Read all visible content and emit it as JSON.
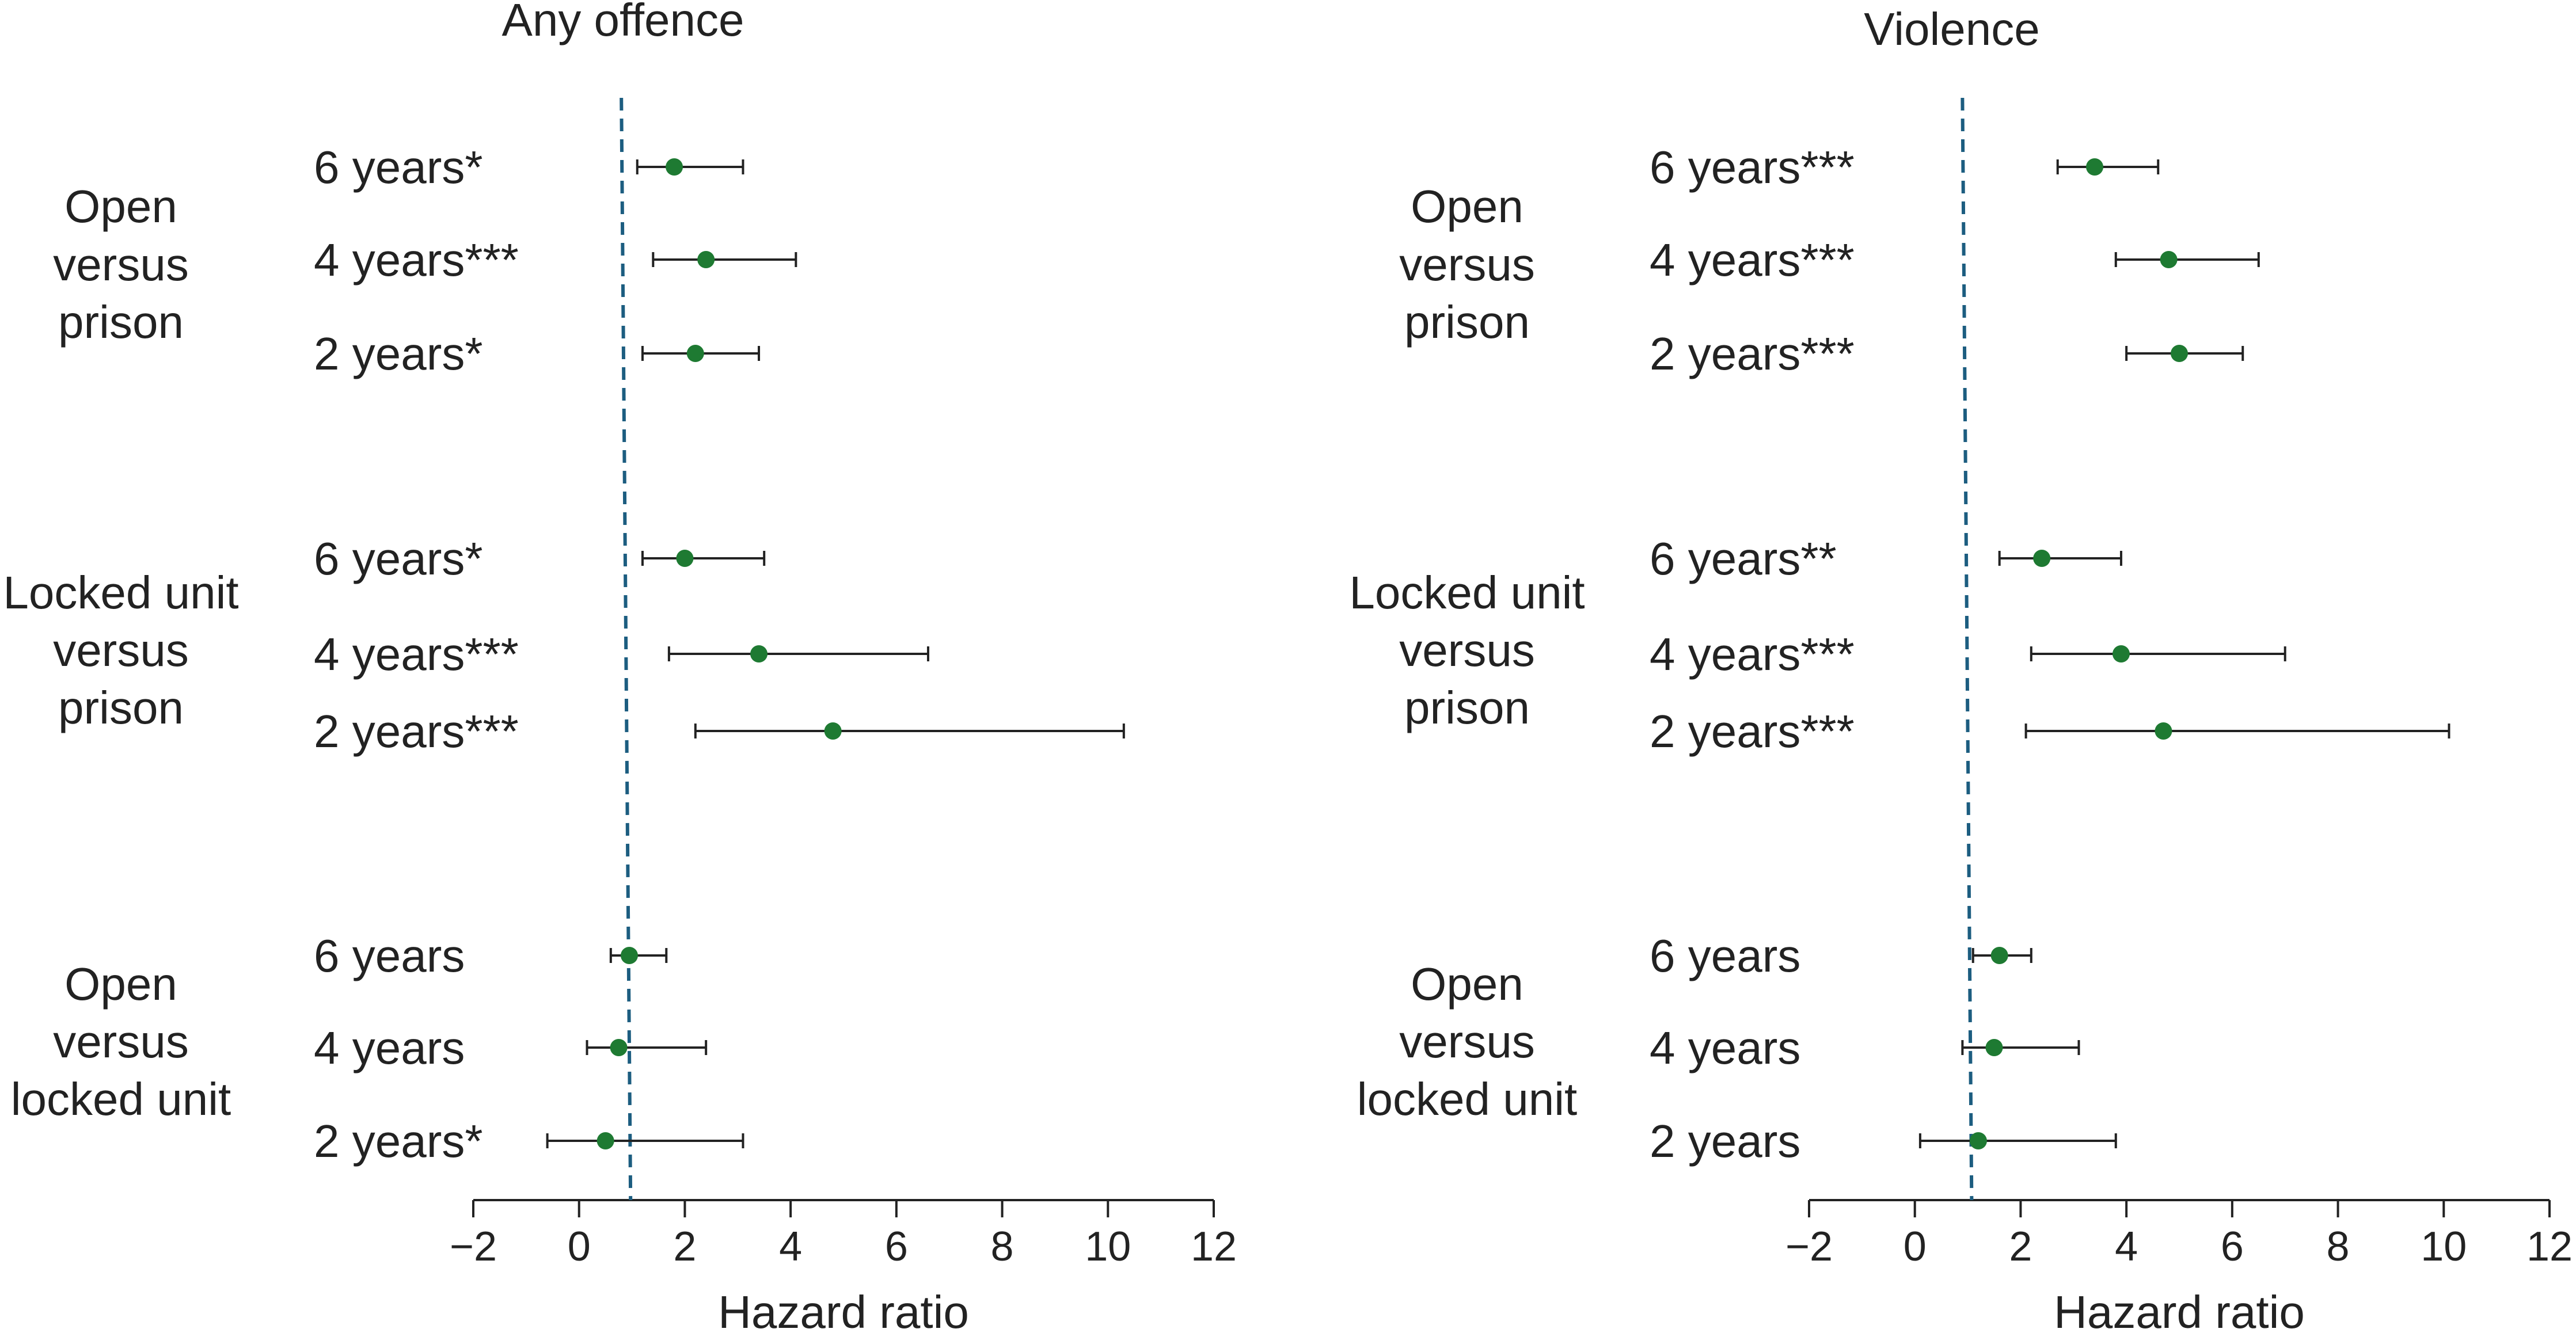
{
  "chart_data": [
    {
      "type": "forest",
      "title": "Any offence",
      "xlabel": "Hazard ratio",
      "xlim": [
        -2,
        12
      ],
      "xticks": [
        "−2",
        "0",
        "2",
        "4",
        "6",
        "8",
        "10",
        "12"
      ],
      "xtick_values": [
        -2,
        0,
        2,
        4,
        6,
        8,
        10,
        12
      ],
      "reference_line": 0.8,
      "point_color": "#1e7a32",
      "reference_color": "#1c5d80",
      "groups": [
        {
          "label": [
            "Open",
            "versus",
            "prison"
          ],
          "rows": [
            {
              "label": "6 years*",
              "estimate": 1.8,
              "lower": 1.1,
              "upper": 3.1
            },
            {
              "label": "4 years***",
              "estimate": 2.4,
              "lower": 1.4,
              "upper": 4.1
            },
            {
              "label": "2 years*",
              "estimate": 2.2,
              "lower": 1.2,
              "upper": 3.4
            }
          ]
        },
        {
          "label": [
            "Locked unit",
            "versus",
            "prison"
          ],
          "rows": [
            {
              "label": "6 years*",
              "estimate": 2.0,
              "lower": 1.2,
              "upper": 3.5
            },
            {
              "label": "4 years***",
              "estimate": 3.4,
              "lower": 1.7,
              "upper": 6.6
            },
            {
              "label": "2 years***",
              "estimate": 4.8,
              "lower": 2.2,
              "upper": 10.3
            }
          ]
        },
        {
          "label": [
            "Open",
            "versus",
            "locked unit"
          ],
          "rows": [
            {
              "label": "6 years",
              "estimate": 0.95,
              "lower": 0.6,
              "upper": 1.65
            },
            {
              "label": "4 years",
              "estimate": 0.75,
              "lower": 0.15,
              "upper": 2.4
            },
            {
              "label": "2 years*",
              "estimate": 0.5,
              "lower": -0.6,
              "upper": 3.1
            }
          ]
        }
      ]
    },
    {
      "type": "forest",
      "title": "Violence",
      "xlabel": "Hazard ratio",
      "xlim": [
        -2,
        12
      ],
      "xticks": [
        "−2",
        "0",
        "2",
        "4",
        "6",
        "8",
        "10",
        "12"
      ],
      "xtick_values": [
        -2,
        0,
        2,
        4,
        6,
        8,
        10,
        12
      ],
      "reference_line": 0.9,
      "point_color": "#1e7a32",
      "reference_color": "#1c5d80",
      "groups": [
        {
          "label": [
            "Open",
            "versus",
            "prison"
          ],
          "rows": [
            {
              "label": "6 years***",
              "estimate": 3.4,
              "lower": 2.7,
              "upper": 4.6
            },
            {
              "label": "4 years***",
              "estimate": 4.8,
              "lower": 3.8,
              "upper": 6.5
            },
            {
              "label": "2 years***",
              "estimate": 5.0,
              "lower": 4.0,
              "upper": 6.2
            }
          ]
        },
        {
          "label": [
            "Locked unit",
            "versus",
            "prison"
          ],
          "rows": [
            {
              "label": "6 years**",
              "estimate": 2.4,
              "lower": 1.6,
              "upper": 3.9
            },
            {
              "label": "4 years***",
              "estimate": 3.9,
              "lower": 2.2,
              "upper": 7.0
            },
            {
              "label": "2 years***",
              "estimate": 4.7,
              "lower": 2.1,
              "upper": 10.1
            }
          ]
        },
        {
          "label": [
            "Open",
            "versus",
            "locked unit"
          ],
          "rows": [
            {
              "label": "6 years",
              "estimate": 1.6,
              "lower": 1.1,
              "upper": 2.2
            },
            {
              "label": "4 years",
              "estimate": 1.5,
              "lower": 0.9,
              "upper": 3.1
            },
            {
              "label": "2 years",
              "estimate": 1.2,
              "lower": 0.1,
              "upper": 3.8
            }
          ]
        }
      ]
    }
  ]
}
